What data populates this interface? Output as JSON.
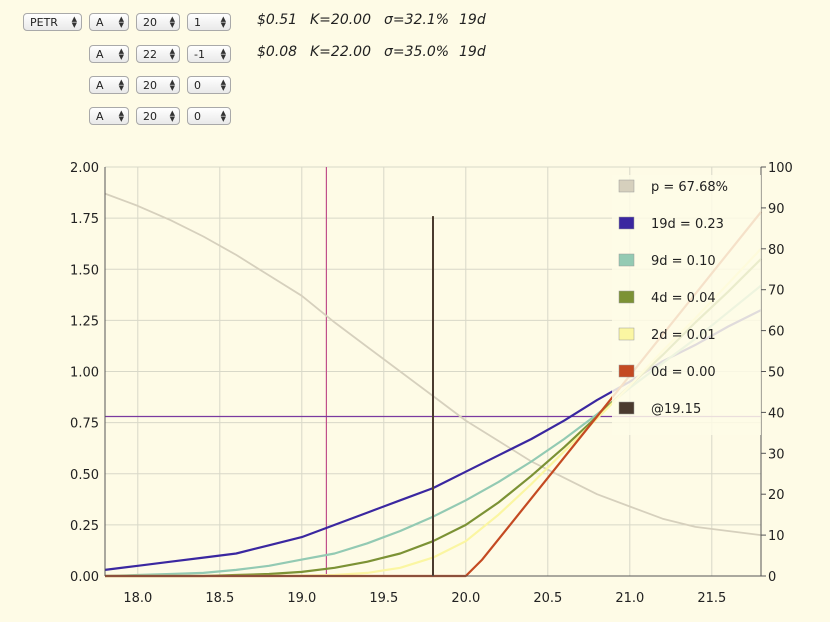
{
  "legs": [
    {
      "symbol": "PETR",
      "series": "A",
      "strike": "20",
      "qty": "1",
      "price": "$0.51",
      "k": "K=20.00",
      "sigma": "σ=32.1%",
      "days": "19d"
    },
    {
      "series": "A",
      "strike": "22",
      "qty": "-1",
      "price": "$0.08",
      "k": "K=22.00",
      "sigma": "σ=35.0%",
      "days": "19d"
    },
    {
      "series": "A",
      "strike": "20",
      "qty": "0"
    },
    {
      "series": "A",
      "strike": "20",
      "qty": "0"
    }
  ],
  "colors": {
    "probability": "#d6d0bd",
    "d19": "#3a27a0",
    "d9": "#93cab3",
    "d4": "#7c9235",
    "d2": "#fbf6a2",
    "d0": "#c44a22",
    "at": "#4a3a2e",
    "crosshair_v": "#c0508a",
    "crosshair_h": "#7a3aa0",
    "grid": "#d8d8c8",
    "axis": "#555555",
    "background": "#fefbe6"
  },
  "chart_data": {
    "type": "line",
    "x_ticks": [
      "18.0",
      "18.5",
      "19.0",
      "19.5",
      "20.0",
      "20.5",
      "21.0",
      "21.5"
    ],
    "y_left_ticks": [
      "0.00",
      "0.25",
      "0.50",
      "0.75",
      "1.00",
      "1.25",
      "1.50",
      "1.75",
      "2.00"
    ],
    "y_right_ticks": [
      "0",
      "10",
      "20",
      "30",
      "40",
      "50",
      "60",
      "70",
      "80",
      "90",
      "100"
    ],
    "xlim": [
      17.8,
      21.8
    ],
    "ylim": [
      0,
      2
    ],
    "y2lim": [
      0,
      100
    ],
    "grid": true,
    "legend_position": "top-right",
    "series": [
      {
        "key": "probability",
        "name": "p = 67.68%",
        "axis": "right",
        "x": [
          17.8,
          18.0,
          18.2,
          18.4,
          18.6,
          18.8,
          19.0,
          19.2,
          19.4,
          19.6,
          19.8,
          20.0,
          20.2,
          20.4,
          20.6,
          20.8,
          21.0,
          21.2,
          21.4,
          21.6,
          21.8
        ],
        "y": [
          93.5,
          90.5,
          87,
          83,
          78.5,
          73.5,
          68.5,
          62,
          56,
          50,
          44,
          38,
          33,
          28,
          24,
          20,
          17,
          14,
          12,
          11,
          10
        ]
      },
      {
        "key": "d19",
        "name": "19d = 0.23",
        "axis": "left",
        "x": [
          17.8,
          18.0,
          18.2,
          18.4,
          18.6,
          18.8,
          19.0,
          19.1,
          19.2,
          19.4,
          19.6,
          19.8,
          20.0,
          20.2,
          20.4,
          20.6,
          20.8,
          21.0,
          21.2,
          21.4,
          21.6,
          21.8
        ],
        "y": [
          0.03,
          0.05,
          0.07,
          0.09,
          0.11,
          0.15,
          0.19,
          0.22,
          0.25,
          0.31,
          0.37,
          0.43,
          0.51,
          0.59,
          0.67,
          0.76,
          0.86,
          0.95,
          1.05,
          1.13,
          1.22,
          1.3
        ]
      },
      {
        "key": "d9",
        "name": "9d = 0.10",
        "axis": "left",
        "x": [
          17.8,
          18.0,
          18.2,
          18.4,
          18.6,
          18.8,
          19.0,
          19.2,
          19.4,
          19.6,
          19.8,
          20.0,
          20.2,
          20.4,
          20.6,
          20.8,
          21.0,
          21.2,
          21.4,
          21.6,
          21.8
        ],
        "y": [
          0,
          0.005,
          0.01,
          0.015,
          0.03,
          0.05,
          0.08,
          0.11,
          0.16,
          0.22,
          0.29,
          0.37,
          0.46,
          0.56,
          0.67,
          0.79,
          0.92,
          1.04,
          1.16,
          1.29,
          1.42
        ]
      },
      {
        "key": "d4",
        "name": "4d = 0.04",
        "axis": "left",
        "x": [
          17.8,
          18.0,
          18.2,
          18.4,
          18.6,
          18.8,
          19.0,
          19.2,
          19.4,
          19.6,
          19.8,
          20.0,
          20.2,
          20.4,
          20.6,
          20.8,
          21.0,
          21.2,
          21.4,
          21.6,
          21.8
        ],
        "y": [
          0,
          0,
          0,
          0,
          0.005,
          0.01,
          0.02,
          0.04,
          0.07,
          0.11,
          0.17,
          0.25,
          0.36,
          0.49,
          0.63,
          0.78,
          0.93,
          1.08,
          1.24,
          1.39,
          1.55
        ]
      },
      {
        "key": "d2",
        "name": "2d = 0.01",
        "axis": "left",
        "x": [
          17.8,
          18.0,
          18.2,
          18.4,
          18.6,
          18.8,
          19.0,
          19.2,
          19.4,
          19.6,
          19.8,
          20.0,
          20.2,
          20.4,
          20.6,
          20.8,
          21.0,
          21.2,
          21.4,
          21.6,
          21.8
        ],
        "y": [
          0,
          0,
          0,
          0,
          0,
          0,
          0.002,
          0.005,
          0.015,
          0.04,
          0.09,
          0.17,
          0.3,
          0.45,
          0.61,
          0.77,
          0.93,
          1.1,
          1.26,
          1.43,
          1.6
        ]
      },
      {
        "key": "d0",
        "name": "0d = 0.00",
        "axis": "left",
        "x": [
          17.8,
          19.0,
          20.0,
          20.1,
          20.4,
          20.6,
          20.8,
          21.0,
          21.2,
          21.4,
          21.6,
          21.8
        ],
        "y": [
          0,
          0,
          0,
          0.08,
          0.38,
          0.58,
          0.78,
          0.98,
          1.18,
          1.38,
          1.58,
          1.78
        ]
      }
    ],
    "marker": {
      "key": "at",
      "name": "@19.15",
      "x": 19.8,
      "y": 1.76
    },
    "crosshair": {
      "x": 19.15,
      "y": 0.78
    }
  }
}
